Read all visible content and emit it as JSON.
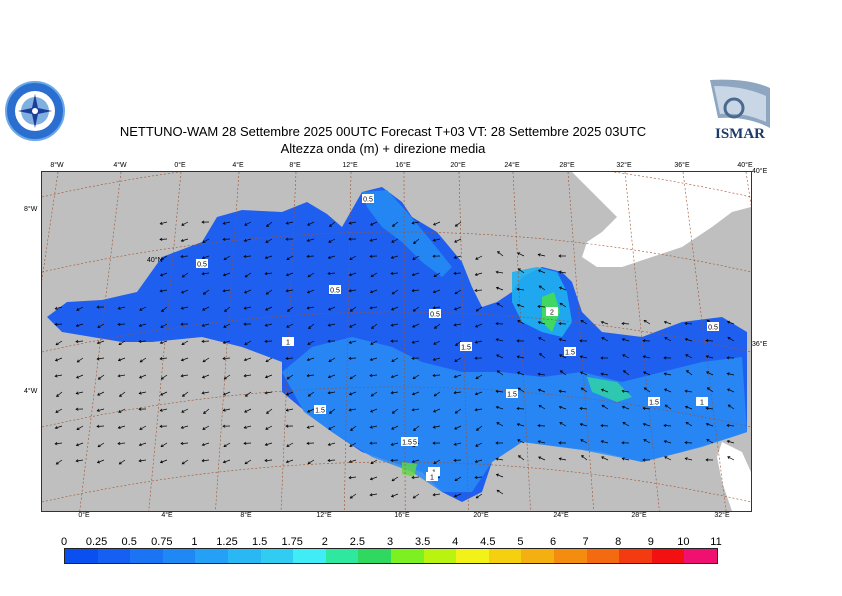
{
  "title": "NETTUNO-WAM  28 Settembre 2025 00UTC Forecast T+03 VT: 28 Settembre 2025 03UTC",
  "subtitle": "Altezza onda (m) + direzione media",
  "logos": {
    "left": "nettuno-logo-icon",
    "right_text": "ISMAR"
  },
  "top_lon_labels": [
    "8°W",
    "4°W",
    "0°E",
    "4°E",
    "8°E",
    "12°E",
    "16°E",
    "20°E",
    "24°E",
    "28°E",
    "32°E",
    "36°E",
    "40°E"
  ],
  "bottom_lon_labels": [
    "0°E",
    "4°E",
    "8°E",
    "12°E",
    "16°E",
    "20°E",
    "24°E",
    "28°E",
    "32°E"
  ],
  "left_lat_labels": [
    "8°W",
    "4°W"
  ],
  "right_lat_labels": [
    "40°E",
    "36°E"
  ],
  "inner_labels": [
    "40°N"
  ],
  "contour_labels": [
    "0.5",
    "0.5",
    "0.5",
    "0.5",
    "1",
    "1.5",
    "1.5",
    "1.5",
    "1.5",
    "1.5",
    "1.5",
    "1",
    "2",
    "0.5",
    "1",
    "1",
    "1.5"
  ],
  "legend": {
    "values": [
      "0",
      "0.25",
      "0.5",
      "0.75",
      "1",
      "1.25",
      "1.5",
      "1.75",
      "2",
      "2.5",
      "3",
      "3.5",
      "4",
      "4.5",
      "5",
      "6",
      "7",
      "8",
      "9",
      "10",
      "11"
    ],
    "colors": [
      "#0a4ff0",
      "#1560f2",
      "#1a74f4",
      "#1f88f5",
      "#24a0f6",
      "#2ab8f5",
      "#30ccf2",
      "#40ecf6",
      "#2ee8a0",
      "#30d860",
      "#7cf020",
      "#b8f410",
      "#f2f218",
      "#f4d010",
      "#f4b010",
      "#f48c10",
      "#f46a10",
      "#f43a10",
      "#f21010",
      "#f01070",
      "#f018c8"
    ]
  },
  "colors": {
    "sea_base": "#2f7ff2",
    "land": "#bfbfbf",
    "white_land": "#ffffff",
    "grid": "#a0522d"
  }
}
